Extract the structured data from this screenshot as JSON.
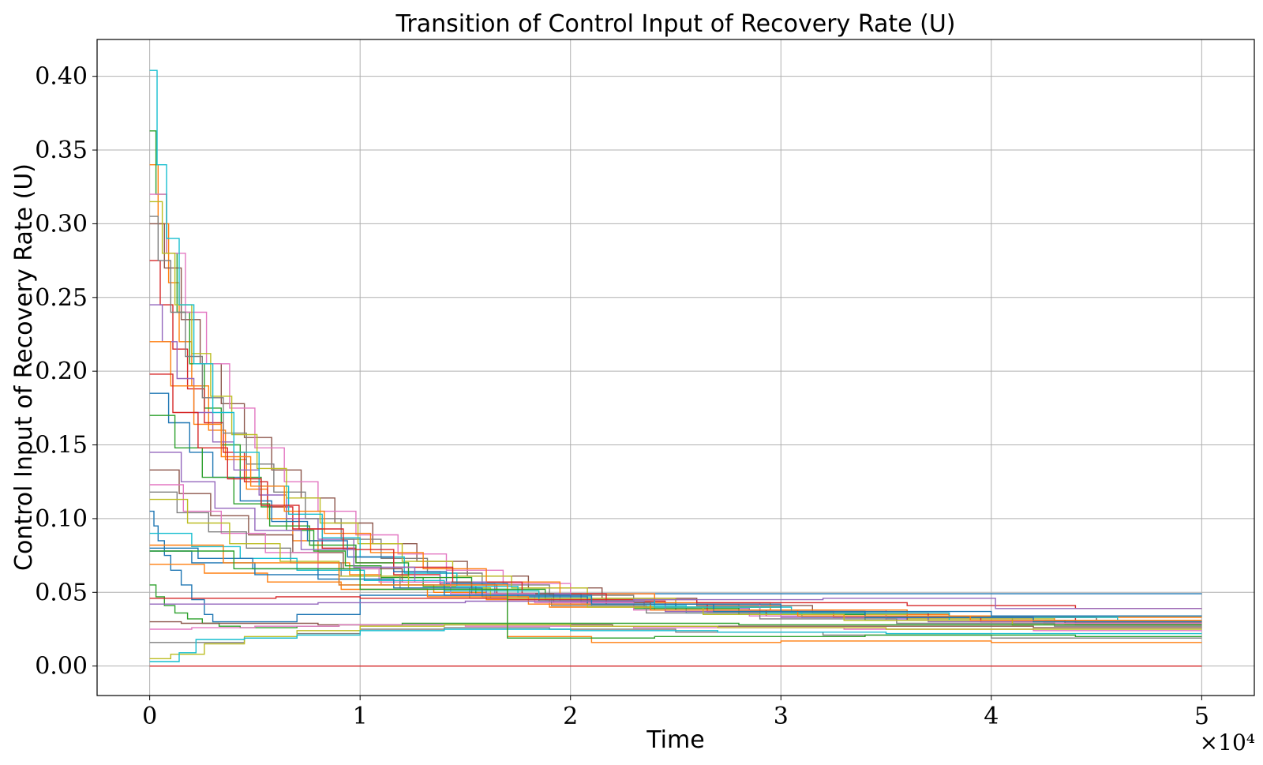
{
  "chart_data": {
    "type": "line",
    "title": "Transition of Control Input of Recovery Rate (U)",
    "xlabel": "Time",
    "ylabel": "Control Input of Recovery Rate (U)",
    "x_multiplier_label": "×10⁴",
    "xlim": [
      -2500,
      52500
    ],
    "ylim": [
      -0.02,
      0.425
    ],
    "x_ticks": [
      0,
      10000,
      20000,
      30000,
      40000,
      50000
    ],
    "x_tick_labels": [
      "0",
      "1",
      "2",
      "3",
      "4",
      "5"
    ],
    "y_ticks": [
      0.0,
      0.05,
      0.1,
      0.15,
      0.2,
      0.25,
      0.3,
      0.35,
      0.4
    ],
    "y_tick_labels": [
      "0.00",
      "0.05",
      "0.10",
      "0.15",
      "0.20",
      "0.25",
      "0.30",
      "0.35",
      "0.40"
    ],
    "grid": true,
    "legend": false,
    "step": true,
    "colors": [
      "#1f77b4",
      "#ff7f0e",
      "#2ca02c",
      "#d62728",
      "#9467bd",
      "#8c564b",
      "#e377c2",
      "#7f7f7f",
      "#bcbd22",
      "#17becf"
    ],
    "series": [
      {
        "x": [
          0,
          200,
          400,
          700,
          1000,
          1500,
          2000,
          2600,
          3000,
          5000,
          7000,
          10000,
          20000,
          50000
        ],
        "y": [
          0.105,
          0.095,
          0.085,
          0.075,
          0.065,
          0.055,
          0.045,
          0.035,
          0.03,
          0.03,
          0.035,
          0.048,
          0.049,
          0.049
        ]
      },
      {
        "x": [
          0,
          400,
          900,
          1400,
          2000,
          2800,
          3600,
          4600,
          5600,
          6800,
          8000,
          9500,
          11000,
          13500,
          16000,
          19000,
          24000,
          30000,
          38000,
          50000
        ],
        "y": [
          0.34,
          0.3,
          0.26,
          0.22,
          0.19,
          0.16,
          0.14,
          0.12,
          0.1,
          0.085,
          0.07,
          0.062,
          0.055,
          0.05,
          0.045,
          0.04,
          0.038,
          0.035,
          0.033,
          0.033
        ]
      },
      {
        "x": [
          0,
          300,
          800,
          1300,
          1900,
          2600,
          3400,
          4300,
          5300,
          6500,
          7800,
          9300,
          11000,
          13000,
          15500,
          18500,
          23000,
          29000,
          36000,
          50000
        ],
        "y": [
          0.363,
          0.32,
          0.28,
          0.24,
          0.205,
          0.175,
          0.15,
          0.128,
          0.108,
          0.092,
          0.078,
          0.068,
          0.06,
          0.054,
          0.049,
          0.044,
          0.04,
          0.036,
          0.034,
          0.034
        ]
      },
      {
        "x": [
          0,
          500,
          1100,
          1800,
          2600,
          3500,
          4500,
          5600,
          6800,
          8200,
          9800,
          11600,
          13800,
          16500,
          20000,
          24500,
          30000,
          37000,
          44000,
          50000
        ],
        "y": [
          0.275,
          0.245,
          0.215,
          0.188,
          0.165,
          0.145,
          0.125,
          0.108,
          0.093,
          0.08,
          0.07,
          0.062,
          0.055,
          0.049,
          0.044,
          0.04,
          0.036,
          0.033,
          0.031,
          0.031
        ]
      },
      {
        "x": [
          0,
          600,
          1300,
          2100,
          3000,
          4000,
          5200,
          6500,
          8000,
          9700,
          11600,
          13800,
          16400,
          19500,
          23500,
          28500,
          35000,
          42000,
          50000
        ],
        "y": [
          0.245,
          0.22,
          0.195,
          0.172,
          0.152,
          0.133,
          0.116,
          0.1,
          0.086,
          0.074,
          0.064,
          0.056,
          0.049,
          0.044,
          0.039,
          0.035,
          0.032,
          0.03,
          0.03
        ]
      },
      {
        "x": [
          0,
          700,
          1500,
          2400,
          3400,
          4500,
          5800,
          7200,
          8800,
          10600,
          12700,
          15100,
          18000,
          21500,
          26000,
          31500,
          38000,
          45000,
          50000
        ],
        "y": [
          0.3,
          0.27,
          0.235,
          0.205,
          0.178,
          0.155,
          0.133,
          0.114,
          0.097,
          0.083,
          0.071,
          0.061,
          0.053,
          0.046,
          0.041,
          0.036,
          0.033,
          0.031,
          0.031
        ]
      },
      {
        "x": [
          0,
          800,
          1700,
          2700,
          3800,
          5000,
          6400,
          8000,
          9800,
          11800,
          14100,
          16800,
          20000,
          24000,
          29000,
          35000,
          42000,
          50000
        ],
        "y": [
          0.32,
          0.28,
          0.24,
          0.205,
          0.175,
          0.148,
          0.125,
          0.105,
          0.089,
          0.076,
          0.065,
          0.056,
          0.049,
          0.043,
          0.038,
          0.034,
          0.031,
          0.031
        ]
      },
      {
        "x": [
          0,
          400,
          1000,
          1700,
          2500,
          3500,
          4600,
          5900,
          7400,
          9100,
          11000,
          13200,
          15800,
          19000,
          23000,
          28000,
          34000,
          41000,
          50000
        ],
        "y": [
          0.305,
          0.275,
          0.24,
          0.21,
          0.182,
          0.158,
          0.137,
          0.118,
          0.1,
          0.086,
          0.073,
          0.063,
          0.055,
          0.048,
          0.042,
          0.037,
          0.034,
          0.031,
          0.031
        ]
      },
      {
        "x": [
          0,
          600,
          1200,
          2000,
          2900,
          3900,
          5100,
          6500,
          8100,
          9900,
          12000,
          14400,
          17200,
          20800,
          25000,
          30000,
          36000,
          43000,
          50000
        ],
        "y": [
          0.315,
          0.28,
          0.245,
          0.212,
          0.183,
          0.157,
          0.134,
          0.114,
          0.097,
          0.083,
          0.071,
          0.061,
          0.053,
          0.046,
          0.04,
          0.035,
          0.032,
          0.03,
          0.03
        ]
      },
      {
        "x": [
          0,
          350,
          800,
          1400,
          2100,
          3000,
          4000,
          5200,
          6600,
          8200,
          10000,
          12100,
          14600,
          17500,
          21000,
          25500,
          31000,
          38000,
          50000
        ],
        "y": [
          0.404,
          0.34,
          0.29,
          0.245,
          0.205,
          0.172,
          0.145,
          0.122,
          0.103,
          0.087,
          0.074,
          0.063,
          0.054,
          0.047,
          0.041,
          0.036,
          0.033,
          0.031,
          0.031
        ]
      },
      {
        "x": [
          0,
          900,
          1900,
          3000,
          4300,
          5800,
          7500,
          9400,
          11600,
          14100,
          17000,
          20500,
          25000,
          30000,
          37000,
          44000,
          50000
        ],
        "y": [
          0.185,
          0.165,
          0.145,
          0.128,
          0.112,
          0.098,
          0.085,
          0.074,
          0.064,
          0.056,
          0.049,
          0.043,
          0.038,
          0.034,
          0.031,
          0.029,
          0.029
        ]
      },
      {
        "x": [
          0,
          1000,
          2100,
          3400,
          4800,
          6400,
          8300,
          10500,
          13000,
          16000,
          19500,
          24000,
          29500,
          36000,
          43000,
          50000
        ],
        "y": [
          0.22,
          0.19,
          0.164,
          0.142,
          0.122,
          0.105,
          0.09,
          0.077,
          0.066,
          0.057,
          0.049,
          0.043,
          0.038,
          0.034,
          0.031,
          0.031
        ]
      },
      {
        "x": [
          0,
          1200,
          2500,
          4000,
          5700,
          7600,
          9800,
          12300,
          15300,
          18800,
          23000,
          28000,
          34000,
          41000,
          50000
        ],
        "y": [
          0.17,
          0.148,
          0.128,
          0.11,
          0.095,
          0.082,
          0.07,
          0.06,
          0.052,
          0.045,
          0.039,
          0.035,
          0.031,
          0.028,
          0.028
        ]
      },
      {
        "x": [
          0,
          1100,
          2300,
          3700,
          5300,
          7100,
          9200,
          11600,
          14400,
          17700,
          21700,
          26500,
          32500,
          39500,
          50000
        ],
        "y": [
          0.198,
          0.172,
          0.148,
          0.127,
          0.109,
          0.093,
          0.079,
          0.067,
          0.057,
          0.049,
          0.042,
          0.037,
          0.033,
          0.03,
          0.03
        ]
      },
      {
        "x": [
          0,
          1500,
          3100,
          5000,
          7200,
          9700,
          12600,
          16000,
          20000,
          24500,
          30000,
          37000,
          44000,
          50000
        ],
        "y": [
          0.145,
          0.125,
          0.107,
          0.092,
          0.079,
          0.067,
          0.057,
          0.049,
          0.042,
          0.037,
          0.033,
          0.03,
          0.028,
          0.028
        ]
      },
      {
        "x": [
          0,
          1400,
          2900,
          4700,
          6800,
          9200,
          12000,
          15300,
          19200,
          23800,
          29300,
          36000,
          43500,
          50000
        ],
        "y": [
          0.133,
          0.117,
          0.102,
          0.089,
          0.077,
          0.066,
          0.057,
          0.049,
          0.043,
          0.038,
          0.034,
          0.031,
          0.029,
          0.029
        ]
      },
      {
        "x": [
          0,
          1600,
          3400,
          5500,
          8000,
          10900,
          14300,
          18300,
          23000,
          28500,
          35000,
          42500,
          50000
        ],
        "y": [
          0.123,
          0.105,
          0.09,
          0.077,
          0.066,
          0.057,
          0.049,
          0.043,
          0.038,
          0.034,
          0.031,
          0.029,
          0.029
        ]
      },
      {
        "x": [
          0,
          1300,
          2800,
          4600,
          6700,
          9100,
          11900,
          15200,
          19100,
          23600,
          29000,
          35500,
          43000,
          50000
        ],
        "y": [
          0.118,
          0.104,
          0.091,
          0.08,
          0.07,
          0.061,
          0.053,
          0.046,
          0.041,
          0.036,
          0.032,
          0.029,
          0.027,
          0.027
        ]
      },
      {
        "x": [
          0,
          1800,
          3800,
          6200,
          9000,
          12300,
          16200,
          20800,
          26300,
          33000,
          41000,
          50000
        ],
        "y": [
          0.113,
          0.097,
          0.083,
          0.071,
          0.061,
          0.053,
          0.046,
          0.04,
          0.035,
          0.031,
          0.028,
          0.028
        ]
      },
      {
        "x": [
          0,
          2000,
          4300,
          7000,
          10200,
          14000,
          18500,
          24000,
          30500,
          38000,
          46000,
          50000
        ],
        "y": [
          0.09,
          0.081,
          0.073,
          0.065,
          0.058,
          0.051,
          0.045,
          0.04,
          0.036,
          0.033,
          0.031,
          0.031
        ]
      },
      {
        "x": [
          0,
          2300,
          4900,
          8000,
          11600,
          15800,
          20800,
          26800,
          34000,
          42000,
          50000
        ],
        "y": [
          0.08,
          0.073,
          0.066,
          0.059,
          0.053,
          0.047,
          0.042,
          0.037,
          0.033,
          0.03,
          0.03
        ]
      },
      {
        "x": [
          0,
          2600,
          5600,
          9100,
          13200,
          18000,
          23800,
          30800,
          39000,
          50000
        ],
        "y": [
          0.069,
          0.063,
          0.057,
          0.052,
          0.047,
          0.042,
          0.038,
          0.034,
          0.031,
          0.031
        ]
      },
      {
        "x": [
          0,
          300,
          700,
          1200,
          1800,
          2500,
          3300,
          4300,
          5500,
          7000,
          9000,
          12000,
          16000,
          21000,
          28000,
          36000,
          50000
        ],
        "y": [
          0.055,
          0.047,
          0.041,
          0.036,
          0.032,
          0.029,
          0.027,
          0.026,
          0.026,
          0.027,
          0.028,
          0.029,
          0.029,
          0.029,
          0.028,
          0.028,
          0.028
        ]
      },
      {
        "x": [
          0,
          2500,
          6000,
          10000,
          17000,
          26000,
          36000,
          44000,
          50000
        ],
        "y": [
          0.046,
          0.046,
          0.047,
          0.046,
          0.045,
          0.043,
          0.041,
          0.039,
          0.039
        ]
      },
      {
        "x": [
          0,
          3000,
          8000,
          15000,
          23000,
          32000,
          40200,
          50000
        ],
        "y": [
          0.042,
          0.042,
          0.043,
          0.044,
          0.045,
          0.046,
          0.039,
          0.039
        ]
      },
      {
        "x": [
          0,
          1500,
          4000,
          8000,
          14000,
          22000,
          32000,
          42000,
          50000
        ],
        "y": [
          0.03,
          0.029,
          0.029,
          0.028,
          0.028,
          0.027,
          0.027,
          0.026,
          0.026
        ]
      },
      {
        "x": [
          0,
          2000,
          5000,
          9000,
          15000,
          23000,
          33000,
          42000,
          50000
        ],
        "y": [
          0.025,
          0.026,
          0.027,
          0.028,
          0.027,
          0.026,
          0.025,
          0.024,
          0.024
        ]
      },
      {
        "x": [
          0,
          1000,
          2600,
          4500,
          7000,
          10000,
          14000,
          19000,
          25000,
          32000,
          40000,
          50000
        ],
        "y": [
          0.016,
          0.016,
          0.016,
          0.019,
          0.022,
          0.025,
          0.026,
          0.025,
          0.023,
          0.021,
          0.019,
          0.019
        ]
      },
      {
        "x": [
          0,
          1000,
          2600,
          4500,
          7000,
          10000,
          14000,
          20000,
          27000,
          35000,
          50000
        ],
        "y": [
          0.005,
          0.008,
          0.015,
          0.02,
          0.024,
          0.027,
          0.028,
          0.027,
          0.026,
          0.025,
          0.025
        ]
      },
      {
        "x": [
          0,
          1400,
          2200,
          4500,
          7000,
          10000,
          14000,
          20000,
          27000,
          35000,
          50000
        ],
        "y": [
          0.003,
          0.009,
          0.018,
          0.019,
          0.021,
          0.024,
          0.025,
          0.024,
          0.023,
          0.022,
          0.022
        ]
      },
      {
        "x": [
          0,
          2000,
          5000,
          9000,
          14000,
          21000,
          30000,
          40000,
          50000
        ],
        "y": [
          0.078,
          0.07,
          0.062,
          0.055,
          0.048,
          0.042,
          0.037,
          0.034,
          0.034
        ]
      },
      {
        "x": [
          0,
          3500,
          9000,
          17000,
          21000,
          30000,
          40000,
          50000
        ],
        "y": [
          0.082,
          0.07,
          0.055,
          0.02,
          0.016,
          0.017,
          0.016,
          0.016
        ]
      },
      {
        "x": [
          0,
          4000,
          10000,
          17000,
          24000,
          34000,
          44000,
          50000
        ],
        "y": [
          0.078,
          0.066,
          0.052,
          0.019,
          0.02,
          0.021,
          0.02,
          0.02
        ]
      },
      {
        "x": [
          0,
          50000
        ],
        "y": [
          0.0,
          0.0
        ]
      }
    ]
  }
}
